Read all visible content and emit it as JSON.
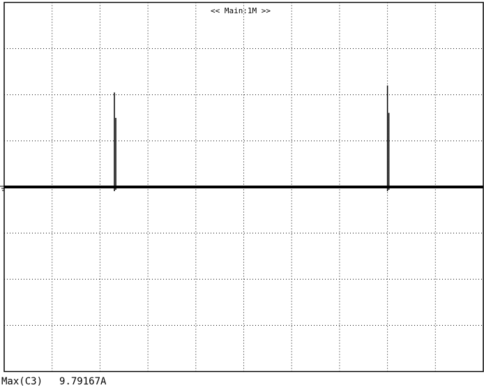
{
  "window": {
    "title": "<< Main:1M >>"
  },
  "scope": {
    "colors": {
      "background": "#ffffff",
      "grid": "#000000",
      "trace": "#000000"
    },
    "grid": {
      "divisions_x": 10,
      "divisions_y": 8,
      "style": "dotted"
    },
    "trace": {
      "channel": "C3",
      "baseline_division": 4,
      "spikes": [
        {
          "division_x": 2.3,
          "peak_division_y": 1.95
        },
        {
          "division_x": 8.0,
          "peak_division_y": 1.8
        }
      ]
    }
  },
  "measurement": {
    "label": "Max(C3)",
    "value": "9.79167A"
  }
}
